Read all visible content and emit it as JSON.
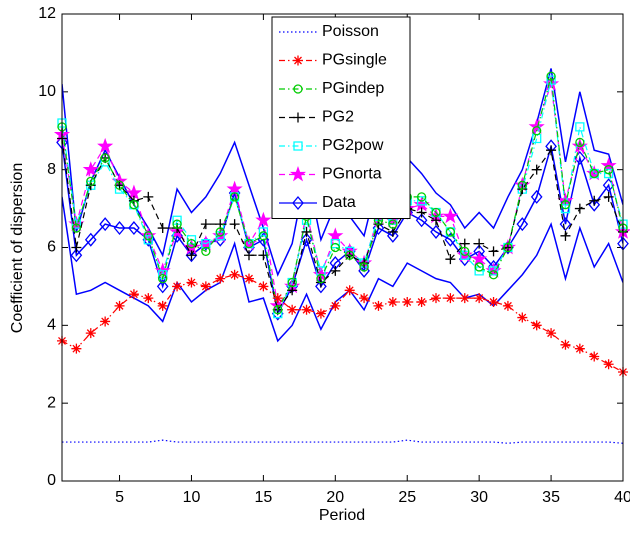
{
  "chart_data": {
    "type": "line",
    "xlabel": "Period",
    "ylabel": "Coefficient of dispersion",
    "x": [
      1,
      2,
      3,
      4,
      5,
      6,
      7,
      8,
      9,
      10,
      11,
      12,
      13,
      14,
      15,
      16,
      17,
      18,
      19,
      20,
      21,
      22,
      23,
      24,
      25,
      26,
      27,
      28,
      29,
      30,
      31,
      32,
      33,
      34,
      35,
      36,
      37,
      38,
      39,
      40
    ],
    "xlim": [
      1,
      40
    ],
    "xticks": [
      5,
      10,
      15,
      20,
      25,
      30,
      35,
      40
    ],
    "ylim": [
      0,
      12
    ],
    "yticks": [
      0,
      2,
      4,
      6,
      8,
      10,
      12
    ],
    "legend": "top",
    "series": [
      {
        "name": "Poisson",
        "color": "#0000ff",
        "dash": "dotted",
        "marker": "none",
        "values": [
          1.0,
          1.0,
          1.0,
          1.0,
          1.0,
          1.0,
          1.0,
          1.05,
          1.0,
          1.0,
          1.0,
          1.0,
          1.0,
          1.0,
          1.0,
          1.0,
          1.0,
          1.0,
          1.0,
          1.0,
          1.0,
          1.0,
          1.0,
          1.0,
          1.05,
          1.0,
          1.0,
          1.0,
          1.0,
          1.0,
          1.0,
          0.97,
          1.0,
          1.0,
          1.0,
          1.0,
          1.0,
          1.0,
          1.0,
          0.97
        ]
      },
      {
        "name": "PGsingle",
        "color": "#ff0000",
        "dash": "dashdot",
        "marker": "asterisk",
        "values": [
          3.6,
          3.4,
          3.8,
          4.1,
          4.5,
          4.8,
          4.7,
          4.5,
          5.0,
          5.1,
          5.0,
          5.2,
          5.3,
          5.2,
          5.0,
          4.7,
          4.4,
          4.4,
          4.3,
          4.5,
          4.9,
          4.7,
          4.5,
          4.6,
          4.6,
          4.6,
          4.7,
          4.7,
          4.7,
          4.7,
          4.6,
          4.5,
          4.2,
          4.0,
          3.8,
          3.5,
          3.4,
          3.2,
          3.0,
          2.8
        ]
      },
      {
        "name": "PGindep",
        "color": "#00cc00",
        "dash": "dashdot",
        "marker": "circle",
        "values": [
          9.1,
          6.5,
          7.7,
          8.3,
          7.6,
          7.1,
          6.3,
          5.2,
          6.6,
          6.1,
          5.9,
          6.4,
          7.3,
          6.1,
          6.3,
          4.4,
          5.1,
          6.8,
          5.2,
          6.0,
          5.8,
          5.5,
          6.7,
          6.6,
          7.3,
          7.3,
          6.9,
          6.4,
          5.9,
          5.5,
          5.3,
          6.0,
          7.6,
          9.0,
          10.4,
          7.1,
          8.7,
          7.9,
          8.0,
          6.5
        ]
      },
      {
        "name": "PG2",
        "color": "#000000",
        "dash": "dashed",
        "marker": "plus",
        "values": [
          8.8,
          6.0,
          7.6,
          8.3,
          7.6,
          7.2,
          7.3,
          6.5,
          6.5,
          5.8,
          6.6,
          6.6,
          6.6,
          5.8,
          5.8,
          4.4,
          4.9,
          6.4,
          5.1,
          5.4,
          5.8,
          5.6,
          6.6,
          6.4,
          7.0,
          6.9,
          6.7,
          5.7,
          6.1,
          6.1,
          5.9,
          6.0,
          7.5,
          8.0,
          8.5,
          6.3,
          7.0,
          7.2,
          7.3,
          6.4
        ]
      },
      {
        "name": "PG2pow",
        "color": "#00ffff",
        "dash": "dashdot",
        "marker": "square",
        "values": [
          9.2,
          6.6,
          7.6,
          8.2,
          7.5,
          7.1,
          6.2,
          5.3,
          6.7,
          6.2,
          6.1,
          6.3,
          7.3,
          6.1,
          6.4,
          4.3,
          5.1,
          6.7,
          5.4,
          6.1,
          5.9,
          5.6,
          6.8,
          6.7,
          7.2,
          7.2,
          6.9,
          6.4,
          5.8,
          5.4,
          5.4,
          6.0,
          7.5,
          8.8,
          10.3,
          7.0,
          9.1,
          7.9,
          7.9,
          6.6
        ]
      },
      {
        "name": "PGnorta",
        "color": "#ff00ff",
        "dash": "dashed",
        "marker": "pentagram",
        "values": [
          8.9,
          6.6,
          8.0,
          8.6,
          7.7,
          7.4,
          6.3,
          5.4,
          6.4,
          6.0,
          6.1,
          6.3,
          7.5,
          6.1,
          6.7,
          4.5,
          5.0,
          6.9,
          5.3,
          6.3,
          5.9,
          5.6,
          6.8,
          6.7,
          7.0,
          7.1,
          6.8,
          6.8,
          5.8,
          5.7,
          5.4,
          6.0,
          7.6,
          9.1,
          10.2,
          7.2,
          8.6,
          7.9,
          8.1,
          6.4
        ]
      },
      {
        "name": "Data",
        "color": "#0000ff",
        "dash": "solid",
        "marker": "diamond",
        "values": [
          8.7,
          5.8,
          6.2,
          6.6,
          6.5,
          6.5,
          6.2,
          5.0,
          6.3,
          5.8,
          6.1,
          6.2,
          7.4,
          6.0,
          6.2,
          4.3,
          5.0,
          6.2,
          5.0,
          5.6,
          5.9,
          5.4,
          6.5,
          6.3,
          6.9,
          6.7,
          6.4,
          6.2,
          5.7,
          5.9,
          5.5,
          6.0,
          6.6,
          7.3,
          8.6,
          6.6,
          8.3,
          7.1,
          7.6,
          6.1
        ]
      },
      {
        "color": "#0000ff",
        "dash": "solid",
        "marker": "none",
        "values": [
          10.2,
          6.4,
          7.7,
          8.5,
          7.8,
          7.1,
          6.5,
          5.8,
          7.5,
          6.9,
          7.3,
          7.9,
          8.7,
          7.6,
          6.5,
          5.3,
          6.1,
          8.0,
          6.2,
          7.1,
          6.8,
          6.3,
          7.8,
          7.5,
          8.3,
          7.9,
          7.4,
          7.1,
          6.5,
          6.9,
          6.5,
          7.3,
          8.0,
          9.2,
          10.6,
          8.2,
          10.0,
          8.5,
          8.4,
          7.1
        ]
      },
      {
        "color": "#0000ff",
        "dash": "solid",
        "marker": "none",
        "values": [
          7.3,
          4.8,
          4.9,
          5.1,
          4.9,
          4.7,
          4.5,
          4.1,
          5.1,
          4.6,
          4.9,
          5.1,
          6.1,
          4.6,
          4.7,
          3.6,
          4.0,
          4.8,
          3.9,
          4.6,
          4.9,
          4.4,
          5.2,
          5.0,
          5.6,
          5.4,
          5.2,
          5.1,
          4.7,
          4.8,
          4.5,
          4.9,
          5.3,
          5.8,
          6.6,
          5.2,
          6.5,
          5.5,
          6.1,
          5.1
        ]
      }
    ]
  }
}
